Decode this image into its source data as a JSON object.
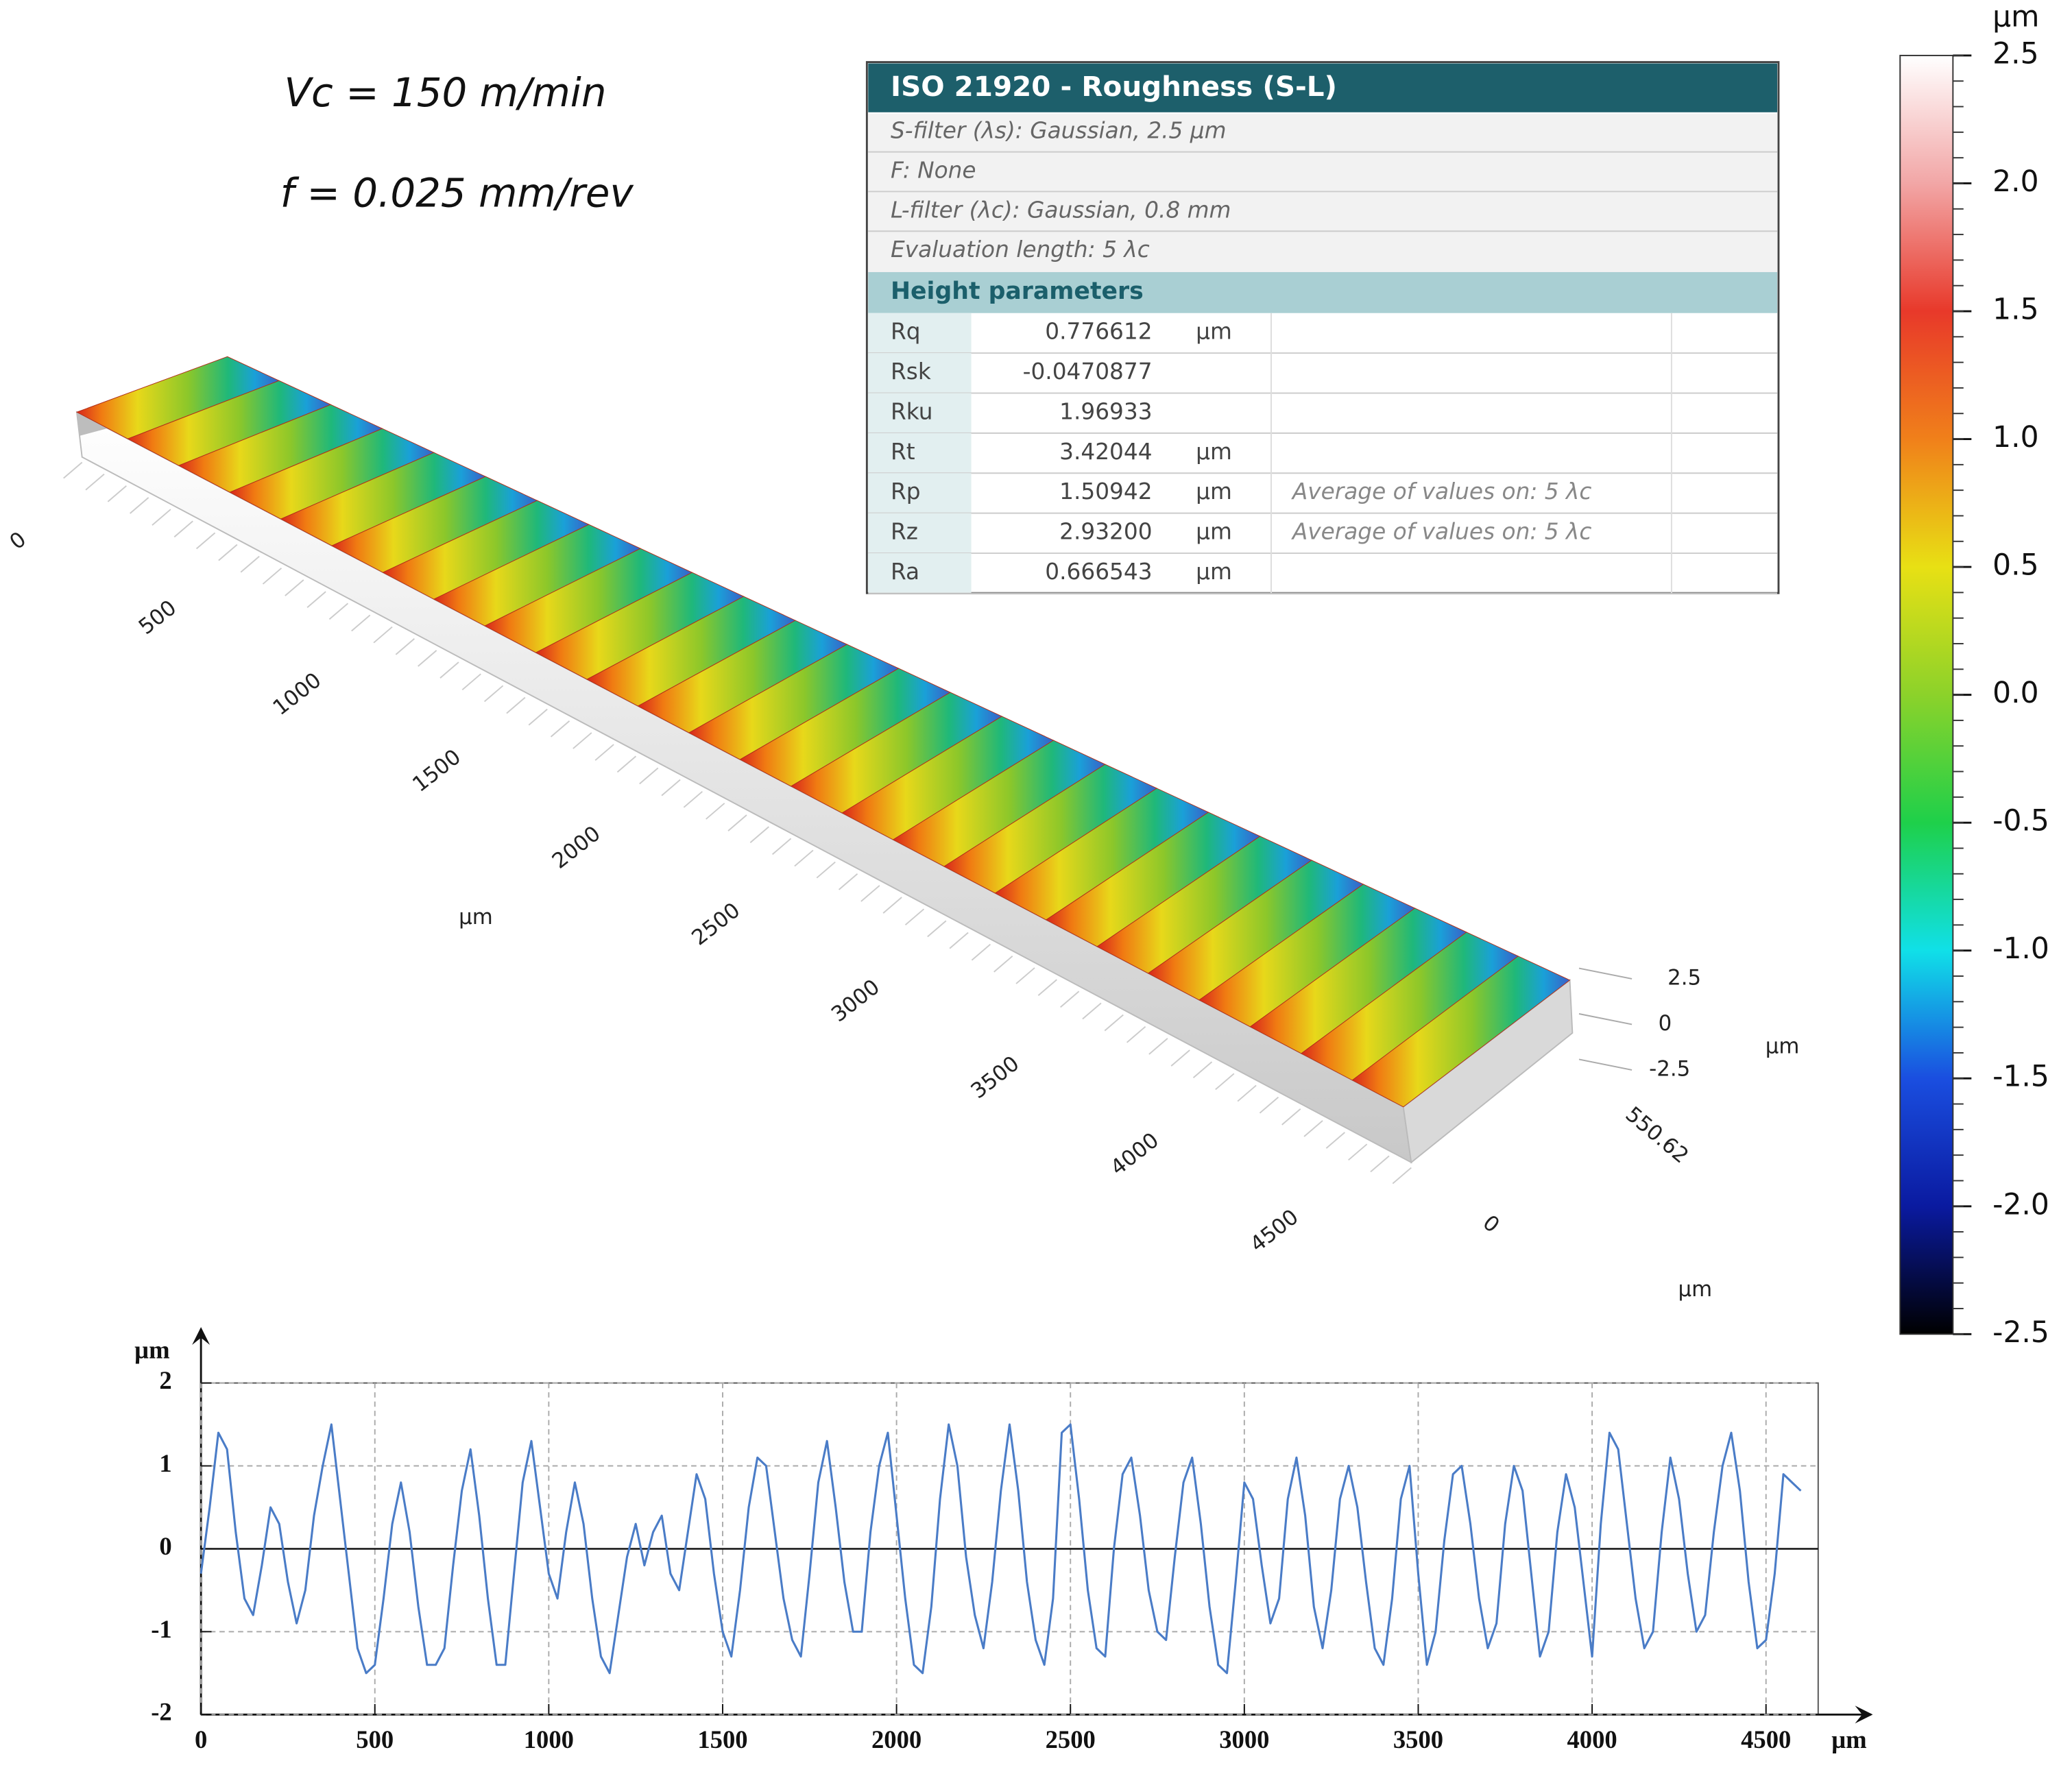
{
  "annotations": {
    "vc": "Vc = 150 m/min",
    "f": "f = 0.025 mm/rev"
  },
  "table": {
    "title": "ISO 21920 - Roughness (S-L)",
    "settings": [
      "S-filter (λs): Gaussian, 2.5 µm",
      "F: None",
      "L-filter (λc): Gaussian, 0.8 mm",
      "Evaluation length: 5 λc"
    ],
    "section": "Height parameters",
    "rows": [
      {
        "name": "Rq",
        "value": "0.776612",
        "unit": "µm"
      },
      {
        "name": "Rsk",
        "value": "-0.0470877"
      },
      {
        "name": "Rku",
        "value": "1.96933"
      },
      {
        "name": "Rt",
        "value": "3.42044",
        "unit": "µm"
      },
      {
        "name": "Rp",
        "value": "1.50942",
        "unit": "µm",
        "note": "Average of values on: 5 λc"
      },
      {
        "name": "Rz",
        "value": "2.93200",
        "unit": "µm",
        "note": "Average of values on: 5 λc"
      },
      {
        "name": "Ra",
        "value": "0.666543",
        "unit": "µm"
      }
    ]
  },
  "surface_3d": {
    "xlim": [
      0,
      4600
    ],
    "x_ticks": [
      0,
      500,
      1000,
      1500,
      2000,
      2500,
      3000,
      3500,
      4000,
      4500
    ],
    "x_unit": "µm",
    "z_ticks": [
      2.5,
      0,
      -2.5
    ],
    "z_unit": "µm",
    "y_ticks": [
      550.62,
      0
    ],
    "y_unit": "µm"
  },
  "colorbar": {
    "unit": "µm",
    "lim": [
      -2.5,
      2.5
    ],
    "colors": [
      "#ffffff",
      "#f2a6a6",
      "#e8392a",
      "#f0801a",
      "#e8e014",
      "#8cd22a",
      "#1ed04a",
      "#10e0e8",
      "#1a4ee0",
      "#0a1aa0",
      "#000000"
    ],
    "ticks": [
      2.5,
      {
        "value": 2,
        "label": "2.0"
      },
      1.5,
      {
        "value": 1,
        "label": "1.0"
      },
      0.5,
      {
        "value": 0,
        "label": "0.0"
      },
      -0.5,
      {
        "value": -1,
        "label": "-1.0"
      },
      -1.5,
      {
        "value": -2,
        "label": "-2.0"
      },
      -2.5
    ]
  },
  "chart_data": {
    "type": "line",
    "x_unit": "µm",
    "y_unit": "µm",
    "xlim": [
      0,
      4650
    ],
    "ylim": [
      -2,
      2
    ],
    "xticks": [
      0,
      500,
      1000,
      1500,
      2000,
      2500,
      3000,
      3500,
      4000,
      4500
    ],
    "yticks": [
      -2,
      -1,
      0,
      1,
      2
    ],
    "grid": true,
    "x": [
      0,
      25,
      50,
      75,
      100,
      125,
      150,
      175,
      200,
      225,
      250,
      275,
      300,
      325,
      350,
      375,
      400,
      425,
      450,
      475,
      500,
      525,
      550,
      575,
      600,
      625,
      650,
      675,
      700,
      725,
      750,
      775,
      800,
      825,
      850,
      875,
      900,
      925,
      950,
      975,
      1000,
      1025,
      1050,
      1075,
      1100,
      1125,
      1150,
      1175,
      1200,
      1225,
      1250,
      1275,
      1300,
      1325,
      1350,
      1375,
      1400,
      1425,
      1450,
      1475,
      1500,
      1525,
      1550,
      1575,
      1600,
      1625,
      1650,
      1675,
      1700,
      1725,
      1750,
      1775,
      1800,
      1825,
      1850,
      1875,
      1900,
      1925,
      1950,
      1975,
      2000,
      2025,
      2050,
      2075,
      2100,
      2125,
      2150,
      2175,
      2200,
      2225,
      2250,
      2275,
      2300,
      2325,
      2350,
      2375,
      2400,
      2425,
      2450,
      2475,
      2500,
      2525,
      2550,
      2575,
      2600,
      2625,
      2650,
      2675,
      2700,
      2725,
      2750,
      2775,
      2800,
      2825,
      2850,
      2875,
      2900,
      2925,
      2950,
      2975,
      3000,
      3025,
      3050,
      3075,
      3100,
      3125,
      3150,
      3175,
      3200,
      3225,
      3250,
      3275,
      3300,
      3325,
      3350,
      3375,
      3400,
      3425,
      3450,
      3475,
      3500,
      3525,
      3550,
      3575,
      3600,
      3625,
      3650,
      3675,
      3700,
      3725,
      3750,
      3775,
      3800,
      3825,
      3850,
      3875,
      3900,
      3925,
      3950,
      3975,
      4000,
      4025,
      4050,
      4075,
      4100,
      4125,
      4150,
      4175,
      4200,
      4225,
      4250,
      4275,
      4300,
      4325,
      4350,
      4375,
      4400,
      4425,
      4450,
      4475,
      4500,
      4525,
      4550,
      4575,
      4600
    ],
    "series": [
      {
        "color": "#4a7cc7",
        "values": [
          -0.3,
          0.5,
          1.4,
          1.2,
          0.2,
          -0.6,
          -0.8,
          -0.2,
          0.5,
          0.3,
          -0.4,
          -0.9,
          -0.5,
          0.4,
          1.0,
          1.5,
          0.6,
          -0.3,
          -1.2,
          -1.5,
          -1.4,
          -0.6,
          0.3,
          0.8,
          0.2,
          -0.7,
          -1.4,
          -1.4,
          -1.2,
          -0.2,
          0.7,
          1.2,
          0.4,
          -0.6,
          -1.4,
          -1.4,
          -0.3,
          0.8,
          1.3,
          0.5,
          -0.3,
          -0.6,
          0.2,
          0.8,
          0.3,
          -0.6,
          -1.3,
          -1.5,
          -0.8,
          -0.1,
          0.3,
          -0.2,
          0.2,
          0.4,
          -0.3,
          -0.5,
          0.2,
          0.9,
          0.6,
          -0.3,
          -1.0,
          -1.3,
          -0.5,
          0.5,
          1.1,
          1.0,
          0.2,
          -0.6,
          -1.1,
          -1.3,
          -0.3,
          0.8,
          1.3,
          0.5,
          -0.4,
          -1.0,
          -1.0,
          0.2,
          1.0,
          1.4,
          0.4,
          -0.6,
          -1.4,
          -1.5,
          -0.7,
          0.6,
          1.5,
          1.0,
          -0.1,
          -0.8,
          -1.2,
          -0.4,
          0.7,
          1.5,
          0.7,
          -0.4,
          -1.1,
          -1.4,
          -0.6,
          1.4,
          1.5,
          0.6,
          -0.5,
          -1.2,
          -1.3,
          0.0,
          0.9,
          1.1,
          0.4,
          -0.5,
          -1.0,
          -1.1,
          -0.1,
          0.8,
          1.1,
          0.3,
          -0.7,
          -1.4,
          -1.5,
          -0.4,
          0.8,
          0.6,
          -0.2,
          -0.9,
          -0.6,
          0.6,
          1.1,
          0.4,
          -0.7,
          -1.2,
          -0.5,
          0.6,
          1.0,
          0.5,
          -0.4,
          -1.2,
          -1.4,
          -0.6,
          0.6,
          1.0,
          -0.3,
          -1.4,
          -1.0,
          0.1,
          0.9,
          1.0,
          0.3,
          -0.6,
          -1.2,
          -0.9,
          0.3,
          1.0,
          0.7,
          -0.3,
          -1.3,
          -1.0,
          0.2,
          0.9,
          0.5,
          -0.4,
          -1.3,
          0.3,
          1.4,
          1.2,
          0.3,
          -0.6,
          -1.2,
          -1.0,
          0.2,
          1.1,
          0.6,
          -0.3,
          -1.0,
          -0.8,
          0.2,
          1.0,
          1.4,
          0.7,
          -0.4,
          -1.2,
          -1.1,
          -0.3,
          0.9,
          0.8,
          0.7
        ]
      }
    ]
  }
}
